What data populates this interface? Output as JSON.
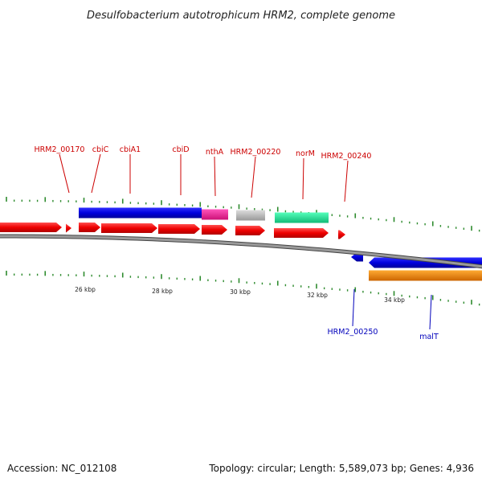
{
  "title": "Desulfobacterium autotrophicum HRM2, complete genome",
  "footer": {
    "accession": "Accession: NC_012108",
    "topology": "Topology: circular; Length: 5,589,073 bp; Genes: 4,936"
  },
  "colors": {
    "forward_label": "#cc0000",
    "reverse_label": "#0000bb",
    "tick": "#2e8b2e",
    "cds_red": "#ee0000",
    "blue": "#0000dd",
    "magenta": "#ee2299",
    "gray_feature": "#bbbbbb",
    "teal": "#22ee99",
    "orange": "#ff8800",
    "backbone": "#888888"
  },
  "ticks": [
    "26 kbp",
    "28 kbp",
    "30 kbp",
    "32 kbp",
    "34 kbp"
  ],
  "forward_labels": [
    "HRM2_00170",
    "cbiC",
    "cbiA1",
    "cbiD",
    "nthA",
    "HRM2_00220",
    "norM",
    "HRM2_00240"
  ],
  "reverse_labels": [
    "HRM2_00250",
    "malT"
  ]
}
